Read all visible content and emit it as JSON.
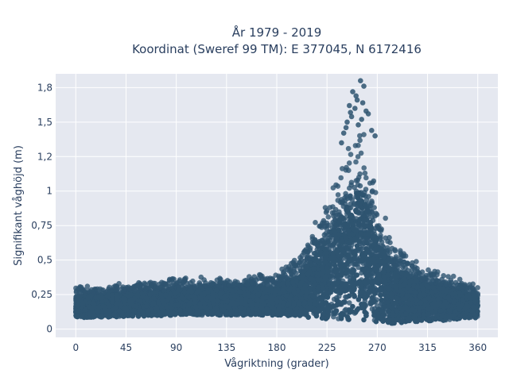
{
  "chart_data": {
    "type": "scatter",
    "title_line1": "År 1979 - 2019",
    "title_line2": "Koordinat (Sweref 99 TM): E 377045, N 6172416",
    "xlabel": "Vågriktning (grader)",
    "ylabel": "Signifikant våghöjd (m)",
    "xlim": [
      -18,
      378
    ],
    "ylim": [
      -0.06,
      1.85
    ],
    "xticks": [
      0,
      45,
      90,
      135,
      180,
      225,
      270,
      315,
      360
    ],
    "xtick_labels": [
      "0",
      "45",
      "90",
      "135",
      "180",
      "225",
      "270",
      "315",
      "360"
    ],
    "yticks": [
      0,
      0.25,
      0.5,
      0.75,
      1,
      1.25,
      1.5,
      1.75
    ],
    "ytick_labels": [
      "0",
      "0,25",
      "0,5",
      "0,75",
      "1",
      "1,2",
      "1,5",
      "1,8"
    ],
    "grid": true,
    "colors": {
      "points": "#2e5470",
      "plot_bg": "#e5e8f0",
      "grid": "#ffffff"
    },
    "envelope": {
      "x": [
        0,
        45,
        90,
        135,
        180,
        200,
        225,
        240,
        255,
        270,
        285,
        300,
        315,
        330,
        345,
        360
      ],
      "lower": [
        0.08,
        0.09,
        0.1,
        0.1,
        0.1,
        0.09,
        0.07,
        0.06,
        0.06,
        0.05,
        0.04,
        0.05,
        0.06,
        0.06,
        0.07,
        0.08
      ],
      "upper": [
        0.32,
        0.34,
        0.38,
        0.38,
        0.42,
        0.55,
        0.95,
        1.3,
        1.55,
        1.0,
        0.65,
        0.55,
        0.45,
        0.42,
        0.38,
        0.32
      ]
    },
    "peak_points": {
      "x": [
        248,
        255,
        258,
        252,
        245,
        250,
        260,
        262,
        247,
        243,
        256,
        253,
        240,
        265,
        268,
        238,
        242,
        251,
        257,
        246
      ],
      "y": [
        1.72,
        1.8,
        1.76,
        1.66,
        1.62,
        1.6,
        1.58,
        1.56,
        1.54,
        1.5,
        1.52,
        1.48,
        1.42,
        1.44,
        1.4,
        1.35,
        1.46,
        1.69,
        1.64,
        1.57
      ]
    }
  }
}
